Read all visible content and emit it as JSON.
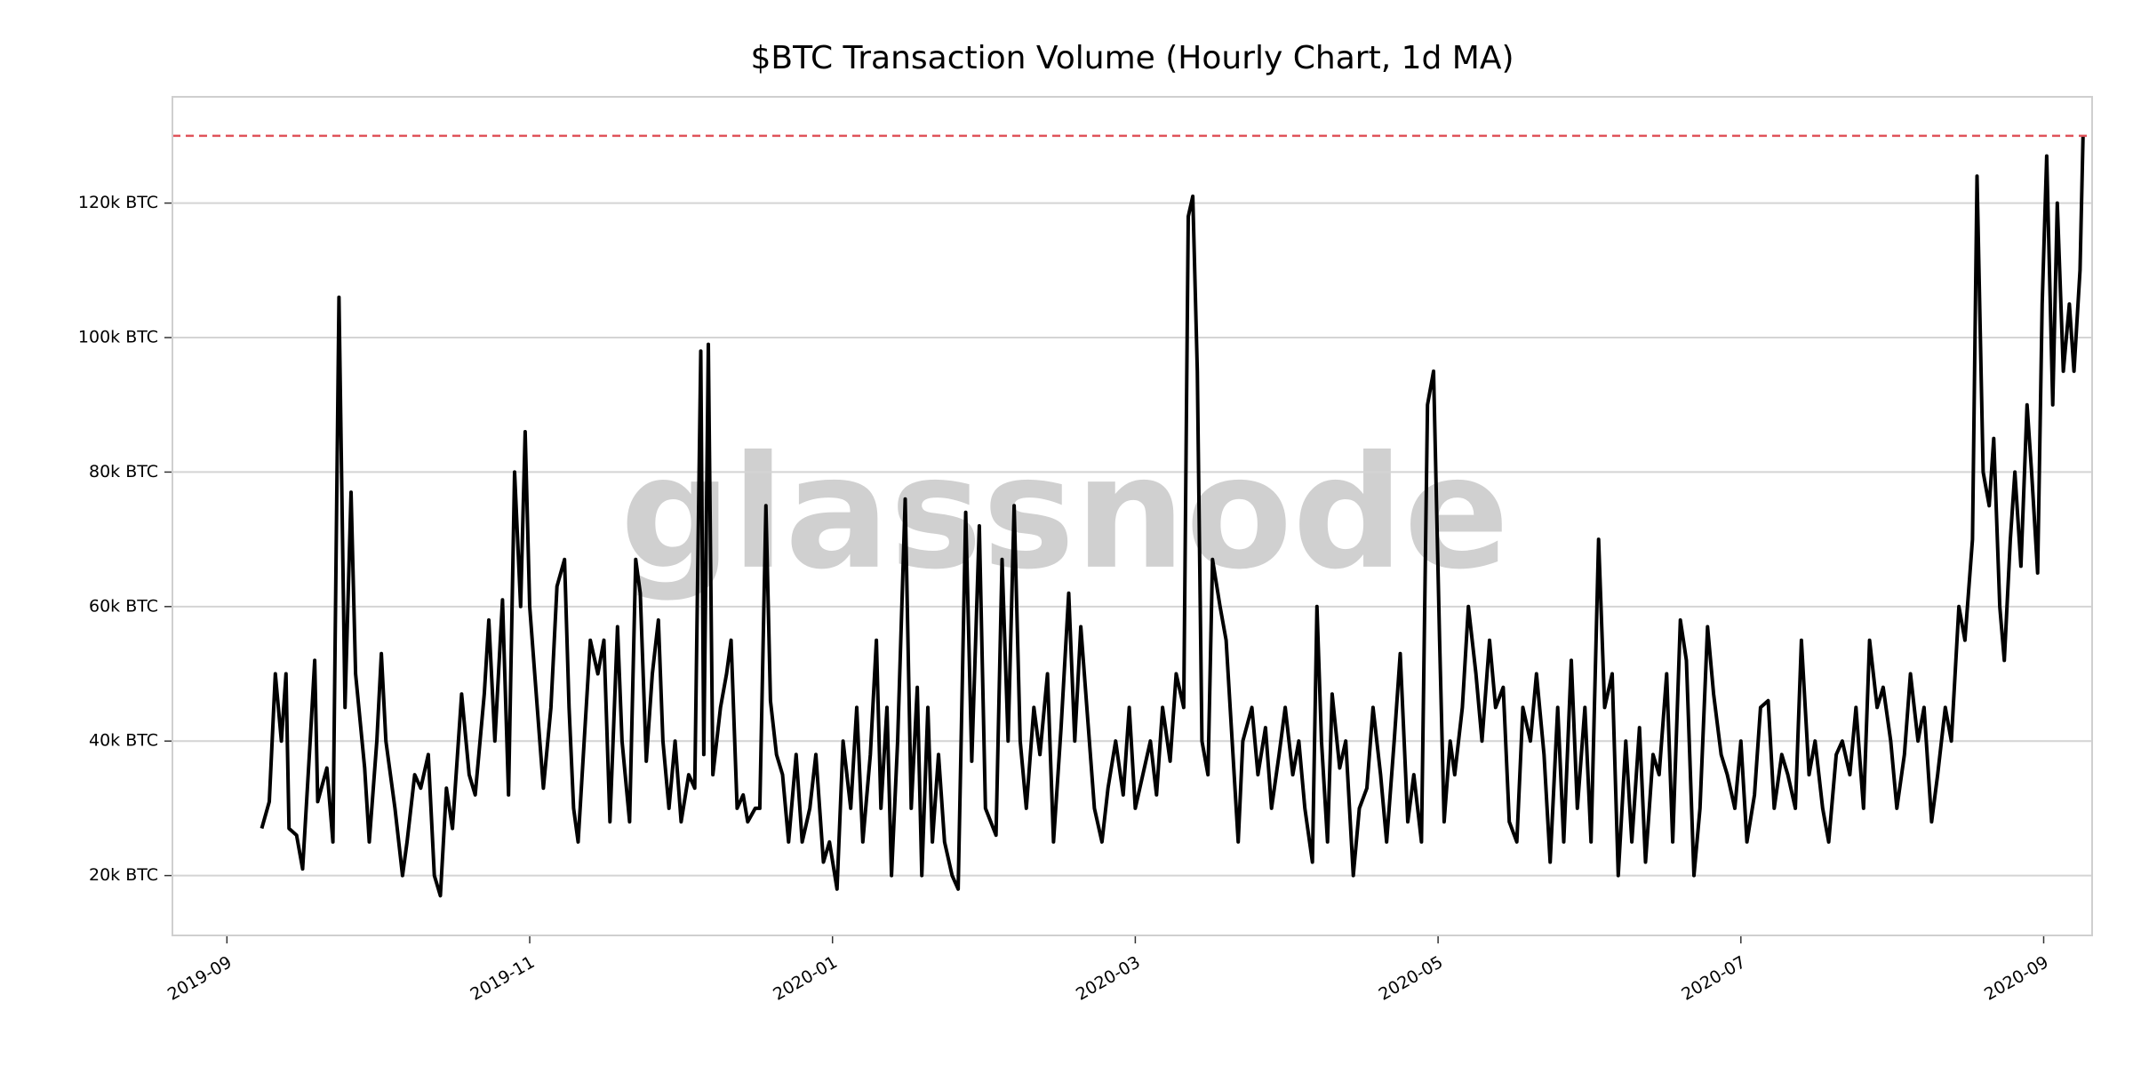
{
  "chart_data": {
    "type": "line",
    "title": "$BTC Transaction Volume (Hourly Chart, 1d MA)",
    "watermark": "glassnode",
    "xlim": [
      -0.36,
      12.32
    ],
    "xticks": [
      {
        "value": 0,
        "label": "2019-09"
      },
      {
        "value": 2,
        "label": "2019-11"
      },
      {
        "value": 4,
        "label": "2020-01"
      },
      {
        "value": 6,
        "label": "2020-03"
      },
      {
        "value": 8,
        "label": "2020-05"
      },
      {
        "value": 10,
        "label": "2020-07"
      },
      {
        "value": 12,
        "label": "2020-09"
      }
    ],
    "ylim": [
      11100,
      135800
    ],
    "yticks": [
      {
        "value": 20000,
        "label": "20k BTC"
      },
      {
        "value": 40000,
        "label": "40k BTC"
      },
      {
        "value": 60000,
        "label": "60k BTC"
      },
      {
        "value": 80000,
        "label": "80k BTC"
      },
      {
        "value": 100000,
        "label": "100k BTC"
      },
      {
        "value": 120000,
        "label": "120k BTC"
      }
    ],
    "grid": true,
    "hline": {
      "value": 130000,
      "color": "#e0535a"
    },
    "series": [
      {
        "color": "#000000",
        "x": [
          0.23,
          0.28,
          0.32,
          0.36,
          0.39,
          0.41,
          0.46,
          0.5,
          0.55,
          0.58,
          0.6,
          0.66,
          0.7,
          0.74,
          0.78,
          0.82,
          0.85,
          0.91,
          0.94,
          0.99,
          1.02,
          1.05,
          1.11,
          1.16,
          1.19,
          1.24,
          1.28,
          1.33,
          1.37,
          1.41,
          1.45,
          1.49,
          1.55,
          1.6,
          1.64,
          1.7,
          1.73,
          1.77,
          1.82,
          1.86,
          1.9,
          1.94,
          1.97,
          2.0,
          2.05,
          2.09,
          2.14,
          2.18,
          2.23,
          2.26,
          2.29,
          2.32,
          2.36,
          2.4,
          2.45,
          2.49,
          2.53,
          2.58,
          2.61,
          2.66,
          2.7,
          2.73,
          2.77,
          2.81,
          2.85,
          2.88,
          2.92,
          2.96,
          3.0,
          3.05,
          3.09,
          3.13,
          3.15,
          3.18,
          3.21,
          3.26,
          3.3,
          3.33,
          3.37,
          3.41,
          3.44,
          3.49,
          3.52,
          3.56,
          3.59,
          3.63,
          3.67,
          3.71,
          3.76,
          3.8,
          3.85,
          3.89,
          3.94,
          3.98,
          4.03,
          4.07,
          4.12,
          4.16,
          4.2,
          4.25,
          4.29,
          4.32,
          4.36,
          4.39,
          4.43,
          4.48,
          4.52,
          4.56,
          4.59,
          4.63,
          4.66,
          4.7,
          4.74,
          4.79,
          4.83,
          4.88,
          4.92,
          4.97,
          5.01,
          5.08,
          5.12,
          5.16,
          5.2,
          5.24,
          5.28,
          5.33,
          5.37,
          5.42,
          5.46,
          5.51,
          5.56,
          5.6,
          5.64,
          5.69,
          5.73,
          5.78,
          5.82,
          5.87,
          5.92,
          5.96,
          6.0,
          6.05,
          6.1,
          6.14,
          6.18,
          6.23,
          6.27,
          6.32,
          6.35,
          6.38,
          6.41,
          6.44,
          6.48,
          6.51,
          6.56,
          6.6,
          6.64,
          6.68,
          6.71,
          6.77,
          6.81,
          6.86,
          6.9,
          6.95,
          6.99,
          7.04,
          7.08,
          7.12,
          7.17,
          7.2,
          7.23,
          7.27,
          7.3,
          7.35,
          7.39,
          7.44,
          7.48,
          7.53,
          7.57,
          7.62,
          7.66,
          7.71,
          7.75,
          7.8,
          7.84,
          7.89,
          7.93,
          7.97,
          8.01,
          8.04,
          8.08,
          8.11,
          8.16,
          8.2,
          8.25,
          8.29,
          8.34,
          8.38,
          8.43,
          8.47,
          8.52,
          8.56,
          8.61,
          8.65,
          8.7,
          8.74,
          8.79,
          8.83,
          8.88,
          8.92,
          8.97,
          9.01,
          9.06,
          9.1,
          9.15,
          9.19,
          9.24,
          9.28,
          9.33,
          9.37,
          9.42,
          9.46,
          9.51,
          9.55,
          9.6,
          9.64,
          9.69,
          9.73,
          9.78,
          9.82,
          9.87,
          9.91,
          9.96,
          10.0,
          10.04,
          10.09,
          10.13,
          10.18,
          10.22,
          10.27,
          10.31,
          10.36,
          10.4,
          10.45,
          10.49,
          10.54,
          10.58,
          10.63,
          10.67,
          10.72,
          10.76,
          10.81,
          10.85,
          10.9,
          10.94,
          10.99,
          11.03,
          11.08,
          11.12,
          11.17,
          11.21,
          11.26,
          11.3,
          11.35,
          11.39,
          11.44,
          11.48,
          11.53,
          11.56,
          11.6,
          11.64,
          11.67,
          11.71,
          11.74,
          11.78,
          11.81,
          11.85,
          11.89,
          11.92,
          11.96,
          11.99,
          12.02,
          12.06,
          12.09,
          12.13,
          12.17,
          12.2,
          12.24,
          12.26
        ],
        "values": [
          27000,
          31000,
          50000,
          40000,
          50000,
          27000,
          26000,
          21000,
          40000,
          52000,
          31000,
          36000,
          25000,
          106000,
          45000,
          77000,
          50000,
          36000,
          25000,
          40000,
          53000,
          40000,
          30000,
          20000,
          25000,
          35000,
          33000,
          38000,
          20000,
          17000,
          33000,
          27000,
          47000,
          35000,
          32000,
          47000,
          58000,
          40000,
          61000,
          32000,
          80000,
          60000,
          86000,
          60000,
          45000,
          33000,
          45000,
          63000,
          67000,
          45000,
          30000,
          25000,
          40000,
          55000,
          50000,
          55000,
          28000,
          57000,
          40000,
          28000,
          67000,
          62000,
          37000,
          50000,
          58000,
          40000,
          30000,
          40000,
          28000,
          35000,
          33000,
          98000,
          38000,
          99000,
          35000,
          45000,
          50000,
          55000,
          30000,
          32000,
          28000,
          30000,
          30000,
          75000,
          46000,
          38000,
          35000,
          25000,
          38000,
          25000,
          30000,
          38000,
          22000,
          25000,
          18000,
          40000,
          30000,
          45000,
          25000,
          38000,
          55000,
          30000,
          45000,
          20000,
          40000,
          76000,
          30000,
          48000,
          20000,
          45000,
          25000,
          38000,
          25000,
          20000,
          18000,
          74000,
          37000,
          72000,
          30000,
          26000,
          67000,
          40000,
          75000,
          40000,
          30000,
          45000,
          38000,
          50000,
          25000,
          42000,
          62000,
          40000,
          57000,
          42000,
          30000,
          25000,
          33000,
          40000,
          32000,
          45000,
          30000,
          35000,
          40000,
          32000,
          45000,
          37000,
          50000,
          45000,
          118000,
          121000,
          95000,
          40000,
          35000,
          67000,
          60000,
          55000,
          40000,
          25000,
          40000,
          45000,
          35000,
          42000,
          30000,
          38000,
          45000,
          35000,
          40000,
          30000,
          22000,
          60000,
          40000,
          25000,
          47000,
          36000,
          40000,
          20000,
          30000,
          33000,
          45000,
          35000,
          25000,
          40000,
          53000,
          28000,
          35000,
          25000,
          90000,
          95000,
          55000,
          28000,
          40000,
          35000,
          45000,
          60000,
          50000,
          40000,
          55000,
          45000,
          48000,
          28000,
          25000,
          45000,
          40000,
          50000,
          38000,
          22000,
          45000,
          25000,
          52000,
          30000,
          45000,
          25000,
          70000,
          45000,
          50000,
          20000,
          40000,
          25000,
          42000,
          22000,
          38000,
          35000,
          50000,
          25000,
          58000,
          52000,
          20000,
          30000,
          57000,
          47000,
          38000,
          35000,
          30000,
          40000,
          25000,
          32000,
          45000,
          46000,
          30000,
          38000,
          35000,
          30000,
          55000,
          35000,
          40000,
          30000,
          25000,
          38000,
          40000,
          35000,
          45000,
          30000,
          55000,
          45000,
          48000,
          40000,
          30000,
          38000,
          50000,
          40000,
          45000,
          28000,
          35000,
          45000,
          40000,
          60000,
          55000,
          70000,
          124000,
          80000,
          75000,
          85000,
          60000,
          52000,
          70000,
          80000,
          66000,
          90000,
          80000,
          65000,
          105000,
          127000,
          90000,
          120000,
          95000,
          105000,
          95000,
          110000,
          130000
        ]
      }
    ]
  }
}
